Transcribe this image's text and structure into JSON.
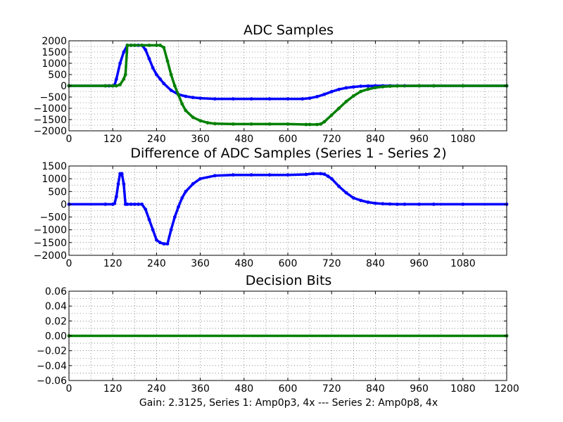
{
  "colors": {
    "series1": "#0000ff",
    "series2": "#008000",
    "difference": "#0000ff",
    "bits": "#008000"
  },
  "chart_data": [
    {
      "type": "scatter",
      "title": "ADC Samples",
      "xlabel": "",
      "ylabel": "",
      "xlim": [
        0,
        1200
      ],
      "ylim": [
        -2000,
        2000
      ],
      "grid": true,
      "xticks": [
        "0",
        "120",
        "240",
        "360",
        "480",
        "600",
        "720",
        "840",
        "960",
        "1080"
      ],
      "yticks": [
        "2000",
        "1500",
        "1000",
        "500",
        "0",
        "−500",
        "−1000",
        "−1500",
        "−2000"
      ],
      "series": [
        {
          "color": "#0000ff",
          "x": [
            0,
            100,
            110,
            120,
            125,
            130,
            140,
            150,
            160,
            170,
            180,
            190,
            200,
            210,
            220,
            230,
            240,
            250,
            260,
            280,
            300,
            320,
            340,
            360,
            400,
            450,
            500,
            550,
            600,
            640,
            660,
            680,
            700,
            720,
            740,
            760,
            780,
            800,
            820,
            840,
            860,
            880,
            900,
            920,
            960,
            1000,
            1080,
            1200
          ],
          "y": [
            0,
            0,
            0,
            0,
            30,
            300,
            1000,
            1500,
            1800,
            1800,
            1800,
            1800,
            1800,
            1600,
            1200,
            800,
            500,
            300,
            100,
            -200,
            -380,
            -470,
            -520,
            -550,
            -580,
            -580,
            -580,
            -580,
            -580,
            -580,
            -550,
            -480,
            -380,
            -260,
            -160,
            -90,
            -50,
            -20,
            -10,
            0,
            0,
            0,
            0,
            0,
            0,
            0,
            0,
            0
          ]
        },
        {
          "color": "#008000",
          "x": [
            0,
            100,
            120,
            130,
            140,
            150,
            155,
            160,
            170,
            180,
            200,
            220,
            240,
            250,
            260,
            270,
            280,
            290,
            300,
            310,
            320,
            340,
            360,
            380,
            400,
            450,
            500,
            550,
            600,
            650,
            660,
            680,
            690,
            700,
            720,
            740,
            760,
            780,
            800,
            820,
            840,
            860,
            880,
            900,
            960,
            1000,
            1080,
            1200
          ],
          "y": [
            0,
            0,
            0,
            0,
            50,
            300,
            500,
            1800,
            1800,
            1800,
            1800,
            1800,
            1800,
            1800,
            1700,
            1100,
            500,
            0,
            -400,
            -800,
            -1100,
            -1400,
            -1550,
            -1640,
            -1680,
            -1700,
            -1700,
            -1700,
            -1700,
            -1720,
            -1720,
            -1720,
            -1700,
            -1600,
            -1300,
            -1000,
            -700,
            -450,
            -250,
            -150,
            -80,
            -40,
            -20,
            -10,
            0,
            0,
            0,
            0
          ]
        }
      ]
    },
    {
      "type": "scatter",
      "title": "Difference of ADC Samples (Series 1 - Series 2)",
      "xlabel": "",
      "ylabel": "",
      "xlim": [
        0,
        1200
      ],
      "ylim": [
        -2000,
        1500
      ],
      "grid": true,
      "xticks": [
        "0",
        "120",
        "240",
        "360",
        "480",
        "600",
        "720",
        "840",
        "960",
        "1080"
      ],
      "yticks": [
        "1500",
        "1000",
        "500",
        "0",
        "−500",
        "−1000",
        "−1500",
        "−2000"
      ],
      "series": [
        {
          "color": "#0000ff",
          "x": [
            0,
            100,
            120,
            125,
            130,
            135,
            140,
            145,
            150,
            155,
            160,
            170,
            180,
            190,
            200,
            210,
            220,
            230,
            240,
            250,
            260,
            270,
            280,
            290,
            300,
            310,
            320,
            340,
            360,
            400,
            450,
            500,
            550,
            600,
            650,
            670,
            690,
            700,
            710,
            720,
            740,
            760,
            780,
            800,
            820,
            840,
            860,
            880,
            900,
            920,
            960,
            1000,
            1080,
            1200
          ],
          "y": [
            0,
            0,
            0,
            30,
            300,
            800,
            1200,
            1200,
            800,
            0,
            0,
            0,
            0,
            0,
            0,
            -200,
            -600,
            -1000,
            -1400,
            -1500,
            -1550,
            -1550,
            -1000,
            -500,
            -100,
            250,
            500,
            800,
            1000,
            1120,
            1150,
            1150,
            1150,
            1150,
            1170,
            1200,
            1200,
            1180,
            1100,
            1000,
            700,
            450,
            250,
            150,
            80,
            40,
            20,
            10,
            0,
            0,
            0,
            0,
            0,
            0
          ]
        }
      ]
    },
    {
      "type": "scatter",
      "title": "Decision Bits",
      "xlabel": "Gain: 2.3125, Series 1: Amp0p3, 4x --- Series 2: Amp0p8, 4x",
      "ylabel": "",
      "xlim": [
        0,
        1200
      ],
      "ylim": [
        -0.06,
        0.06
      ],
      "grid": true,
      "xticks": [
        "0",
        "120",
        "240",
        "360",
        "480",
        "600",
        "720",
        "840",
        "960",
        "1080",
        "1200"
      ],
      "yticks": [
        "0.06",
        "0.04",
        "0.02",
        "0.00",
        "−0.02",
        "−0.04",
        "−0.06"
      ],
      "series": [
        {
          "color": "#008000",
          "x": [
            0,
            1200
          ],
          "y": [
            0,
            0
          ]
        }
      ]
    }
  ]
}
